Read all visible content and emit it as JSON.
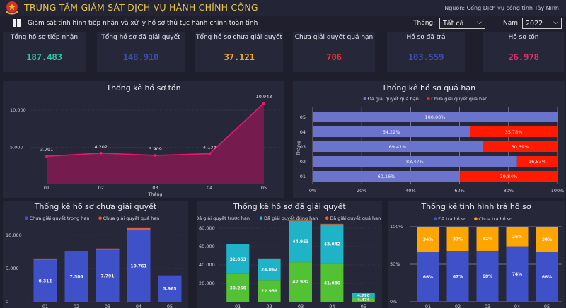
{
  "header": {
    "app_title": "TRUNG TÂM GIÁM SÁT DỊCH VỤ HÀNH CHÍNH CÔNG",
    "source": "Nguồn: Cổng Dịch vụ công tỉnh Tây Ninh",
    "subtitle": "Giám sát tình hình tiếp nhận và xử lý hồ sơ thủ tục hành chính toàn tỉnh",
    "month_label": "Tháng:",
    "month_value": "Tất cả",
    "year_label": "Năm:",
    "year_value": "2022",
    "emblem_icon": "national-emblem-icon",
    "menu_icon": "windows-grid-icon"
  },
  "kpis": [
    {
      "label": "Tổng hồ sơ tiếp nhận",
      "value": "187.483",
      "color": "#2ec8a0"
    },
    {
      "label": "Tổng hồ sơ đã giải quyết",
      "value": "148.910",
      "color": "#3b4fb0"
    },
    {
      "label": "Tổng hồ sơ chưa giải quyết",
      "value": "37.121",
      "color": "#f0a830"
    },
    {
      "label": "Chưa giải quyết quá hạn",
      "value": "706",
      "color": "#e8322a"
    },
    {
      "label": "Hồ sơ đã trả",
      "value": "103.559",
      "color": "#3b4fb0"
    },
    {
      "label": "Hồ sơ tồn",
      "value": "26.978",
      "color": "#e0306a"
    }
  ],
  "chart_data": [
    {
      "id": "ton",
      "type": "area",
      "title": "Thống kê hồ sơ tồn",
      "xlabel": "Tháng",
      "ylabel": "",
      "categories": [
        "01",
        "02",
        "03",
        "04",
        "05"
      ],
      "values": [
        3791,
        4202,
        3909,
        4133,
        10943
      ],
      "data_labels": [
        "3.791",
        "4.202",
        "3.909",
        "4.133",
        "10.943"
      ],
      "yticks": [
        5000,
        10000
      ],
      "ytick_labels": [
        "5.000",
        "10.000"
      ],
      "ylim": [
        0,
        12000
      ],
      "grid": true,
      "color": "#e8196a"
    },
    {
      "id": "quahan",
      "type": "bar",
      "orientation": "horizontal-stacked-100",
      "title": "Thống kê hồ sơ quá hạn",
      "ylabel": "Tháng",
      "categories": [
        "05",
        "04",
        "03",
        "02",
        "01"
      ],
      "series": [
        {
          "name": "Đã giải quyết quá hạn",
          "values": [
            100.0,
            64.22,
            69.41,
            83.47,
            60.16
          ],
          "labels": [
            "100,00%",
            "64,22%",
            "69,41%",
            "83,47%",
            "60,16%"
          ],
          "color": "#6b74cc"
        },
        {
          "name": "Chưa giải quyết quá hạn",
          "values": [
            0,
            35.78,
            30.59,
            16.53,
            39.84
          ],
          "labels": [
            "",
            "35,78%",
            "30,59%",
            "16,53%",
            "39,84%"
          ],
          "color": "#ff1a00"
        }
      ],
      "xticks": [
        "0%",
        "20%",
        "40%",
        "60%",
        "80%",
        "100%"
      ],
      "xlim": [
        0,
        100
      ],
      "legend": "top-center"
    },
    {
      "id": "chuagq",
      "type": "bar",
      "orientation": "vertical-stacked",
      "title": "Thống kê hồ sơ chưa giải quyết",
      "categories": [
        "01",
        "02",
        "03",
        "04",
        "05"
      ],
      "series": [
        {
          "name": "Chưa giải quyết trong hạn",
          "values": [
            6312,
            7586,
            7791,
            10761,
            3965
          ],
          "labels": [
            "6.312",
            "7.586",
            "7.791",
            "10.761",
            "3.965"
          ],
          "color": "#3f51c8"
        },
        {
          "name": "Chưa giải quyết quá hạn",
          "values": [
            180,
            40,
            200,
            300,
            0
          ],
          "labels": [
            "",
            "",
            "",
            "",
            ""
          ],
          "color": "#f05a28"
        }
      ],
      "yticks": [
        0,
        5000,
        10000
      ],
      "ytick_labels": [
        "0",
        "5.000",
        "10.000"
      ],
      "ylim": [
        0,
        12000
      ],
      "legend": "top-center"
    },
    {
      "id": "dagq",
      "type": "bar",
      "orientation": "vertical-stacked",
      "title": "Thống kê hồ sơ đã giải quyết",
      "categories": [
        "01",
        "02",
        "03",
        "04",
        "05"
      ],
      "series": [
        {
          "name": "Đã giải quyết trước hạn",
          "values": [
            30256,
            22959,
            42982,
            41080,
            4474
          ],
          "labels": [
            "30.256",
            "22.959",
            "42.982",
            "41.080",
            "4.474"
          ],
          "color": "#52c234"
        },
        {
          "name": "Đã giải quyết đúng hạn",
          "values": [
            32063,
            24062,
            44953,
            43042,
            4790
          ],
          "labels": [
            "32.063",
            "24.062",
            "44.953",
            "43.042",
            "4.790"
          ],
          "color": "#1fb3c8"
        },
        {
          "name": "Đã giải quyết quá hạn",
          "values": [
            120,
            60,
            400,
            600,
            0
          ],
          "labels": [
            "",
            "",
            "",
            "",
            ""
          ],
          "color": "#f05a28"
        }
      ],
      "yticks": [
        20000,
        40000,
        60000,
        80000
      ],
      "ytick_labels": [
        "20.000",
        "40.000",
        "60.000",
        "80.000"
      ],
      "ylim": [
        0,
        90000
      ],
      "legend": "top-center"
    },
    {
      "id": "tra",
      "type": "bar",
      "orientation": "vertical-stacked-100",
      "title": "Thống kê tình hình trả hồ sơ",
      "categories": [
        "01",
        "02",
        "03",
        "04",
        "05"
      ],
      "series": [
        {
          "name": "Đã trả hồ sơ",
          "values": [
            66,
            67,
            68,
            74,
            66
          ],
          "labels": [
            "66%",
            "67%",
            "68%",
            "74%",
            "66%"
          ],
          "color": "#3f51c8"
        },
        {
          "name": "Chưa trả hồ sơ",
          "values": [
            34,
            33,
            32,
            26,
            34
          ],
          "labels": [
            "34%",
            "33%",
            "32%",
            "26%",
            "34%"
          ],
          "color": "#ffa500"
        }
      ],
      "yticks": [
        0,
        50,
        100
      ],
      "ytick_labels": [
        "0%",
        "50%",
        "100%"
      ],
      "ylim": [
        0,
        100
      ],
      "legend": "top-center"
    }
  ]
}
